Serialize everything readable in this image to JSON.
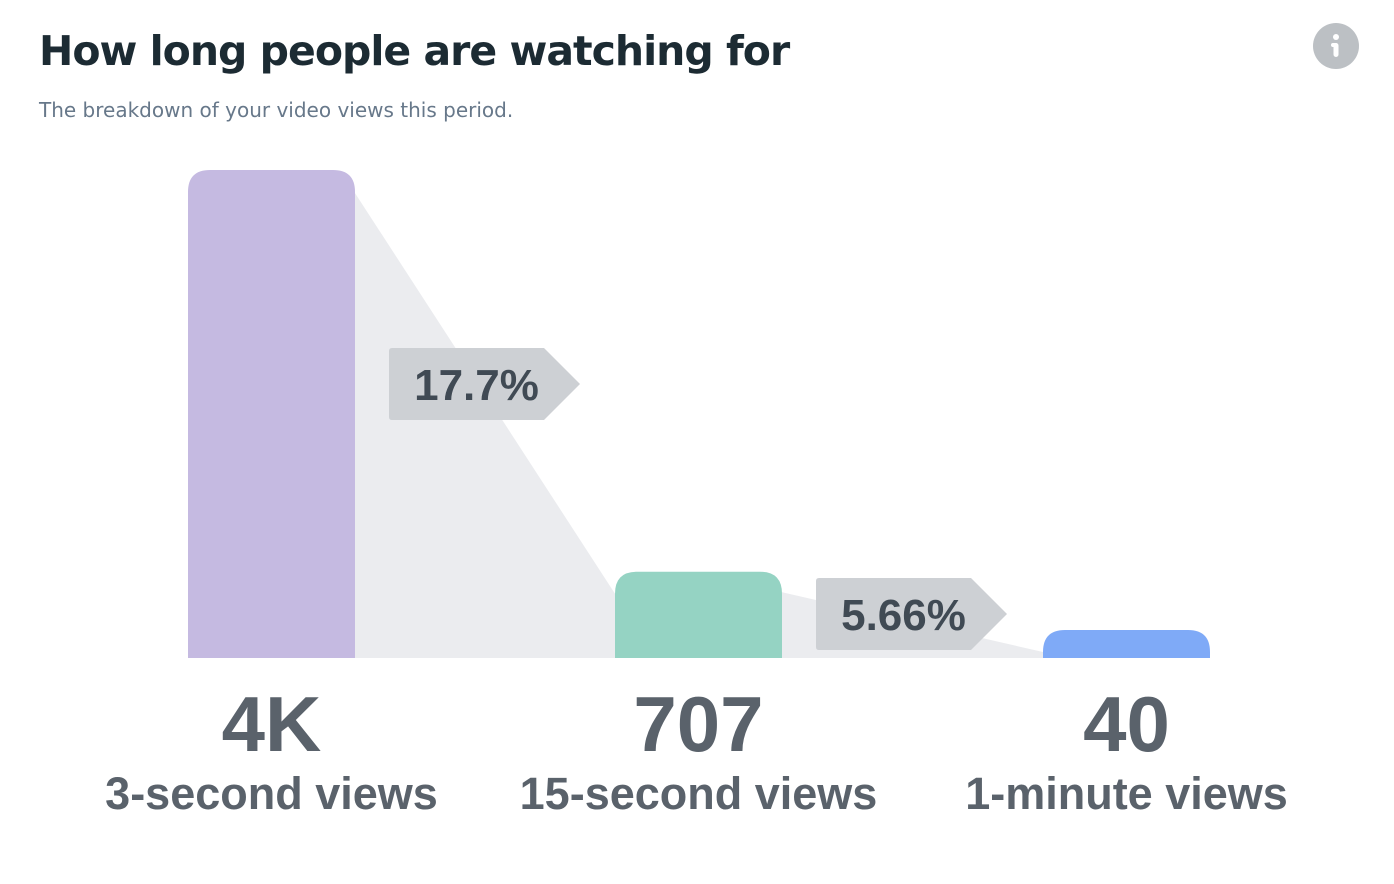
{
  "header": {
    "title": "How long people are watching for",
    "subtitle": "The breakdown of your video views this period."
  },
  "info_button": {
    "icon": "info-icon"
  },
  "chart_data": {
    "type": "bar",
    "categories": [
      "3-second views",
      "15-second views",
      "1-minute views"
    ],
    "values": [
      4000,
      707,
      40
    ],
    "value_labels": [
      "4K",
      "707",
      "40"
    ],
    "drop_rates": [
      "17.7%",
      "5.66%"
    ],
    "colors": [
      "#c5bae1",
      "#95d3c3",
      "#7faaf7"
    ],
    "funnel_color": "#ebecef",
    "badge_color": "#cdd0d4",
    "title": "",
    "xlabel": "",
    "ylabel": "",
    "ylim": [
      0,
      4000
    ],
    "grid": false,
    "legend": "none"
  }
}
